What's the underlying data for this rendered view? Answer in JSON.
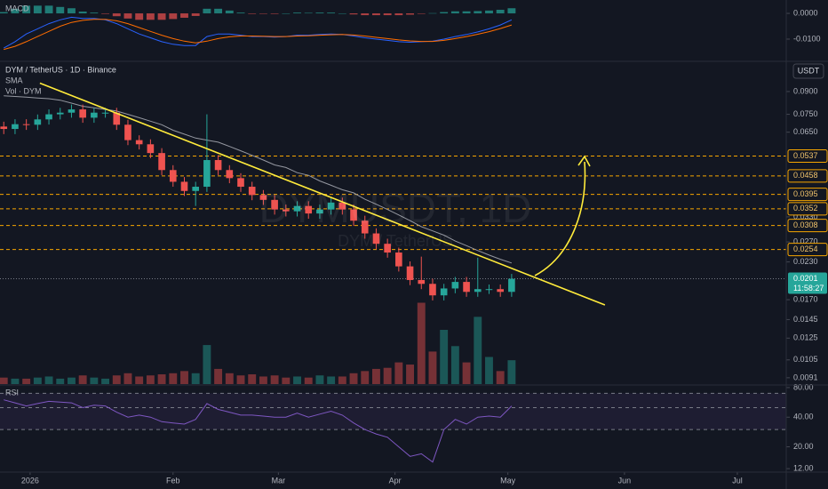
{
  "chart_data": [
    {
      "type": "candlestick",
      "title": "DYM / TetherUS · 1D · Binance",
      "watermark": "DYMUSDT, 1D",
      "watermark_sub": "DYM / TetherUS",
      "axis_unit": "USDT",
      "log_scale": true,
      "up_color": "#26a69a",
      "down_color": "#ef5350",
      "xlim": [
        0,
        209
      ],
      "xticks": [
        {
          "value": 8,
          "label": "2026"
        },
        {
          "value": 46,
          "label": "Feb"
        },
        {
          "value": 74,
          "label": "Mar"
        },
        {
          "value": 105,
          "label": "Apr"
        },
        {
          "value": 135,
          "label": "May"
        },
        {
          "value": 166,
          "label": "Jun"
        },
        {
          "value": 196,
          "label": "Jul"
        }
      ],
      "ylim": [
        0.00865,
        0.1138
      ],
      "yticks": [
        {
          "value": 0.09,
          "label": "0.0900"
        },
        {
          "value": 0.075,
          "label": "0.0750"
        },
        {
          "value": 0.065,
          "label": "0.0650"
        },
        {
          "value": 0.033,
          "label": "0.0330"
        },
        {
          "value": 0.027,
          "label": "0.0270"
        },
        {
          "value": 0.023,
          "label": "0.0230"
        },
        {
          "value": 0.017,
          "label": "0.0170"
        },
        0.0145,
        0.0125,
        0.0105,
        0.0091
      ],
      "x": [
        1,
        4,
        7,
        10,
        13,
        16,
        19,
        22,
        25,
        28,
        31,
        34,
        37,
        40,
        43,
        46,
        49,
        52,
        55,
        58,
        61,
        64,
        67,
        70,
        73,
        76,
        79,
        82,
        85,
        88,
        91,
        94,
        97,
        100,
        103,
        106,
        109,
        112,
        115,
        118,
        121,
        124,
        127,
        130,
        133,
        136
      ],
      "open": [
        0.068,
        0.0667,
        0.0693,
        0.069,
        0.072,
        0.075,
        0.076,
        0.078,
        0.073,
        0.076,
        0.076,
        0.069,
        0.061,
        0.059,
        0.055,
        0.048,
        0.0437,
        0.0406,
        0.042,
        0.052,
        0.048,
        0.045,
        0.042,
        0.0393,
        0.0378,
        0.035,
        0.0345,
        0.036,
        0.0339,
        0.035,
        0.037,
        0.035,
        0.032,
        0.0289,
        0.0266,
        0.0248,
        0.0222,
        0.0199,
        0.0193,
        0.0176,
        0.0186,
        0.0196,
        0.0181,
        0.0185,
        0.0185,
        0.0181
      ],
      "high": [
        0.0707,
        0.0721,
        0.0721,
        0.0749,
        0.078,
        0.079,
        0.0811,
        0.0811,
        0.079,
        0.079,
        0.079,
        0.0718,
        0.0634,
        0.0614,
        0.0572,
        0.0499,
        0.0454,
        0.0437,
        0.075,
        0.0541,
        0.0499,
        0.0468,
        0.0437,
        0.0409,
        0.0393,
        0.0364,
        0.0374,
        0.0374,
        0.0364,
        0.0385,
        0.0385,
        0.0364,
        0.0333,
        0.0301,
        0.0277,
        0.0258,
        0.0231,
        0.024,
        0.0201,
        0.0193,
        0.0204,
        0.0204,
        0.0238,
        0.0192,
        0.0192,
        0.0209
      ],
      "low": [
        0.064,
        0.064,
        0.0662,
        0.0662,
        0.0691,
        0.072,
        0.073,
        0.0701,
        0.0701,
        0.073,
        0.0662,
        0.0586,
        0.0566,
        0.0528,
        0.0461,
        0.042,
        0.039,
        0.036,
        0.0403,
        0.0461,
        0.0432,
        0.0403,
        0.0377,
        0.0363,
        0.0336,
        0.0331,
        0.0331,
        0.0325,
        0.0325,
        0.0336,
        0.0336,
        0.0307,
        0.0277,
        0.0255,
        0.0238,
        0.0213,
        0.0191,
        0.0185,
        0.0169,
        0.0169,
        0.0179,
        0.0174,
        0.0174,
        0.0178,
        0.0174,
        0.0174
      ],
      "close": [
        0.0667,
        0.0693,
        0.069,
        0.072,
        0.075,
        0.076,
        0.078,
        0.073,
        0.076,
        0.076,
        0.069,
        0.061,
        0.059,
        0.055,
        0.048,
        0.0437,
        0.0406,
        0.042,
        0.052,
        0.048,
        0.045,
        0.042,
        0.0393,
        0.0378,
        0.035,
        0.0345,
        0.036,
        0.0339,
        0.035,
        0.037,
        0.035,
        0.032,
        0.0289,
        0.0266,
        0.0248,
        0.0222,
        0.0199,
        0.0193,
        0.0176,
        0.0186,
        0.0196,
        0.0181,
        0.0185,
        0.0185,
        0.0181,
        0.0201
      ],
      "sma": {
        "name": "SMA",
        "color": "#9598a1",
        "values": [
          0.087,
          0.0865,
          0.086,
          0.0855,
          0.085,
          0.084,
          0.082,
          0.08,
          0.079,
          0.078,
          0.077,
          0.075,
          0.073,
          0.071,
          0.069,
          0.066,
          0.064,
          0.062,
          0.061,
          0.06,
          0.058,
          0.056,
          0.054,
          0.052,
          0.05,
          0.049,
          0.047,
          0.046,
          0.044,
          0.0425,
          0.041,
          0.04,
          0.038,
          0.0365,
          0.035,
          0.0335,
          0.032,
          0.0305,
          0.0295,
          0.0285,
          0.0272,
          0.0262,
          0.0252,
          0.0243,
          0.0235,
          0.0228
        ]
      },
      "volume": {
        "name": "Vol · DYM",
        "ylim": [
          0,
          100
        ],
        "values": [
          6,
          5,
          5,
          6,
          7,
          5,
          6,
          8,
          6,
          5,
          8,
          10,
          7,
          8,
          9,
          10,
          12,
          10,
          36,
          14,
          10,
          8,
          9,
          7,
          8,
          6,
          7,
          6,
          8,
          7,
          7,
          10,
          12,
          14,
          15,
          20,
          18,
          75,
          30,
          50,
          35,
          20,
          62,
          25,
          12,
          22
        ]
      },
      "levels": [
        0.0537,
        0.0458,
        0.0395,
        0.0352,
        0.0308,
        0.0254
      ],
      "level_color": "#f7a600",
      "current": {
        "value": 0.0201,
        "countdown": "11:58:27"
      },
      "trendline": {
        "color": "#ffeb3b",
        "x": [
          10.6,
          160.8
        ],
        "y": [
          0.0963,
          0.0163
        ]
      }
    },
    {
      "type": "macd",
      "title": "MACD",
      "ylim": [
        -0.0183,
        0.0052
      ],
      "yticks": [
        {
          "value": 0,
          "label": "0.0000"
        },
        {
          "value": -0.01,
          "label": "-0.0100"
        }
      ],
      "series": [
        {
          "color": "#2962ff",
          "values": [
            -0.0135,
            -0.011,
            -0.008,
            -0.006,
            -0.004,
            -0.0025,
            -0.0015,
            -0.002,
            -0.002,
            -0.0025,
            -0.004,
            -0.006,
            -0.008,
            -0.0095,
            -0.011,
            -0.012,
            -0.0125,
            -0.0125,
            -0.009,
            -0.008,
            -0.008,
            -0.0085,
            -0.009,
            -0.009,
            -0.0092,
            -0.009,
            -0.0085,
            -0.0085,
            -0.0082,
            -0.008,
            -0.0082,
            -0.0088,
            -0.0095,
            -0.01,
            -0.0105,
            -0.011,
            -0.0112,
            -0.011,
            -0.0108,
            -0.01,
            -0.009,
            -0.0082,
            -0.0072,
            -0.006,
            -0.0045,
            -0.0025
          ]
        },
        {
          "color": "#ff6d00",
          "values": [
            -0.014,
            -0.0128,
            -0.011,
            -0.009,
            -0.007,
            -0.005,
            -0.0035,
            -0.0027,
            -0.0023,
            -0.0023,
            -0.0029,
            -0.004,
            -0.0055,
            -0.007,
            -0.0085,
            -0.0098,
            -0.0108,
            -0.0115,
            -0.0108,
            -0.0098,
            -0.0091,
            -0.0088,
            -0.0088,
            -0.0089,
            -0.009,
            -0.009,
            -0.0088,
            -0.0087,
            -0.0085,
            -0.0083,
            -0.0082,
            -0.0084,
            -0.0088,
            -0.0093,
            -0.0098,
            -0.0103,
            -0.0107,
            -0.0109,
            -0.0109,
            -0.0105,
            -0.0098,
            -0.009,
            -0.0081,
            -0.0071,
            -0.0059,
            -0.0045
          ]
        }
      ],
      "histogram": {
        "up_color": "#26a69a",
        "down_color": "#ef5350",
        "values": [
          0.0005,
          0.0018,
          0.003,
          0.003,
          0.003,
          0.0025,
          0.002,
          0.0007,
          0.0003,
          -0.0002,
          -0.0011,
          -0.002,
          -0.0025,
          -0.0025,
          -0.0025,
          -0.0022,
          -0.0017,
          -0.001,
          0.0018,
          0.0018,
          0.0011,
          0.0003,
          -0.0002,
          -0.0001,
          -0.0002,
          0,
          0.0003,
          0.0002,
          0.0003,
          0.0003,
          0,
          -0.0004,
          -0.0007,
          -0.0007,
          -0.0007,
          -0.0007,
          -0.0005,
          -0.0001,
          0.0001,
          0.0005,
          0.0008,
          0.0008,
          0.0009,
          0.0011,
          0.0014,
          0.002
        ]
      }
    },
    {
      "type": "rsi",
      "title": "RSI",
      "color": "#7e57c2",
      "log_scale": true,
      "ylim": [
        11.3,
        85
      ],
      "yticks": [
        {
          "value": 80,
          "label": "80.00"
        },
        {
          "value": 40,
          "label": "40.00"
        },
        {
          "value": 20,
          "label": "20.00"
        },
        {
          "value": 12,
          "label": "12.00"
        }
      ],
      "bands": [
        70,
        50,
        30
      ],
      "values": [
        60,
        56,
        52,
        55,
        58,
        57,
        56,
        50,
        53,
        52,
        45,
        40,
        42,
        40,
        36,
        35,
        34,
        38,
        55,
        48,
        45,
        42,
        42,
        41,
        40,
        40,
        44,
        40,
        43,
        46,
        42,
        35,
        30,
        27,
        25,
        20,
        16,
        17,
        14,
        30,
        38,
        34,
        40,
        41,
        40,
        52
      ]
    }
  ]
}
